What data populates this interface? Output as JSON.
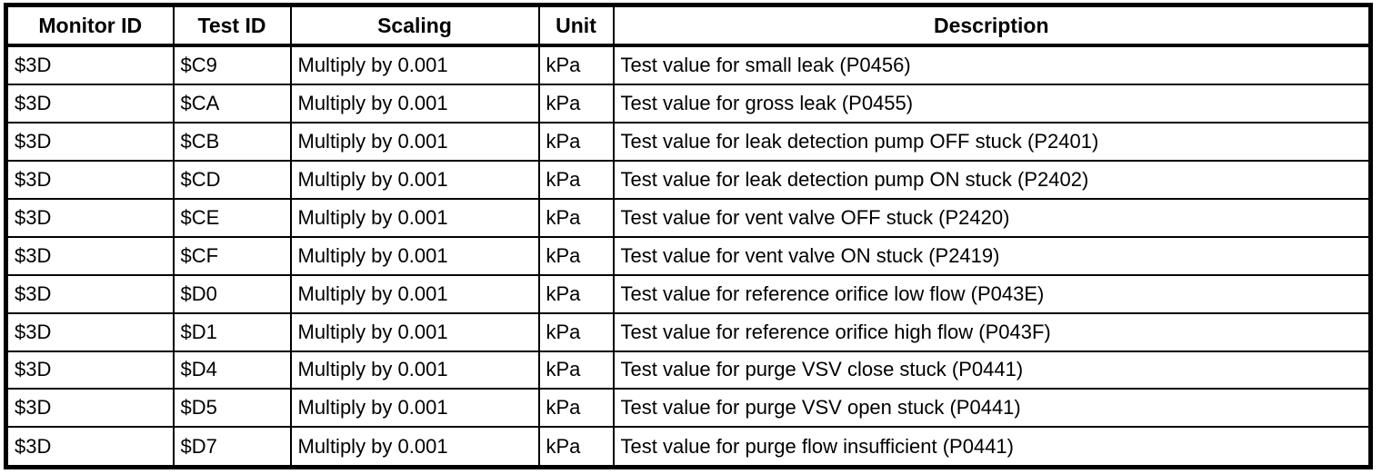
{
  "colors": {
    "border": "#000000",
    "text": "#000000",
    "background": "#ffffff"
  },
  "table": {
    "columns": [
      "Monitor ID",
      "Test ID",
      "Scaling",
      "Unit",
      "Description"
    ],
    "rows": [
      {
        "monitor_id": "$3D",
        "test_id": "$C9",
        "scaling": "Multiply by 0.001",
        "unit": "kPa",
        "description": "Test value for small leak (P0456)"
      },
      {
        "monitor_id": "$3D",
        "test_id": "$CA",
        "scaling": "Multiply by 0.001",
        "unit": "kPa",
        "description": "Test value for gross leak (P0455)"
      },
      {
        "monitor_id": "$3D",
        "test_id": "$CB",
        "scaling": "Multiply by 0.001",
        "unit": "kPa",
        "description": "Test value for leak detection pump OFF stuck (P2401)"
      },
      {
        "monitor_id": "$3D",
        "test_id": "$CD",
        "scaling": "Multiply by 0.001",
        "unit": "kPa",
        "description": "Test value for leak detection pump ON stuck (P2402)"
      },
      {
        "monitor_id": "$3D",
        "test_id": "$CE",
        "scaling": "Multiply by 0.001",
        "unit": "kPa",
        "description": "Test value for vent valve OFF stuck (P2420)"
      },
      {
        "monitor_id": "$3D",
        "test_id": "$CF",
        "scaling": "Multiply by 0.001",
        "unit": "kPa",
        "description": "Test value for vent valve ON stuck (P2419)"
      },
      {
        "monitor_id": "$3D",
        "test_id": "$D0",
        "scaling": "Multiply by 0.001",
        "unit": "kPa",
        "description": "Test value for reference orifice low flow (P043E)"
      },
      {
        "monitor_id": "$3D",
        "test_id": "$D1",
        "scaling": "Multiply by 0.001",
        "unit": "kPa",
        "description": "Test value for reference orifice high flow (P043F)"
      },
      {
        "monitor_id": "$3D",
        "test_id": "$D4",
        "scaling": "Multiply by 0.001",
        "unit": "kPa",
        "description": "Test value for purge VSV close stuck (P0441)"
      },
      {
        "monitor_id": "$3D",
        "test_id": "$D5",
        "scaling": "Multiply by 0.001",
        "unit": "kPa",
        "description": "Test value for purge VSV open stuck (P0441)"
      },
      {
        "monitor_id": "$3D",
        "test_id": "$D7",
        "scaling": "Multiply by 0.001",
        "unit": "kPa",
        "description": "Test value for purge flow insufficient (P0441)"
      }
    ]
  }
}
